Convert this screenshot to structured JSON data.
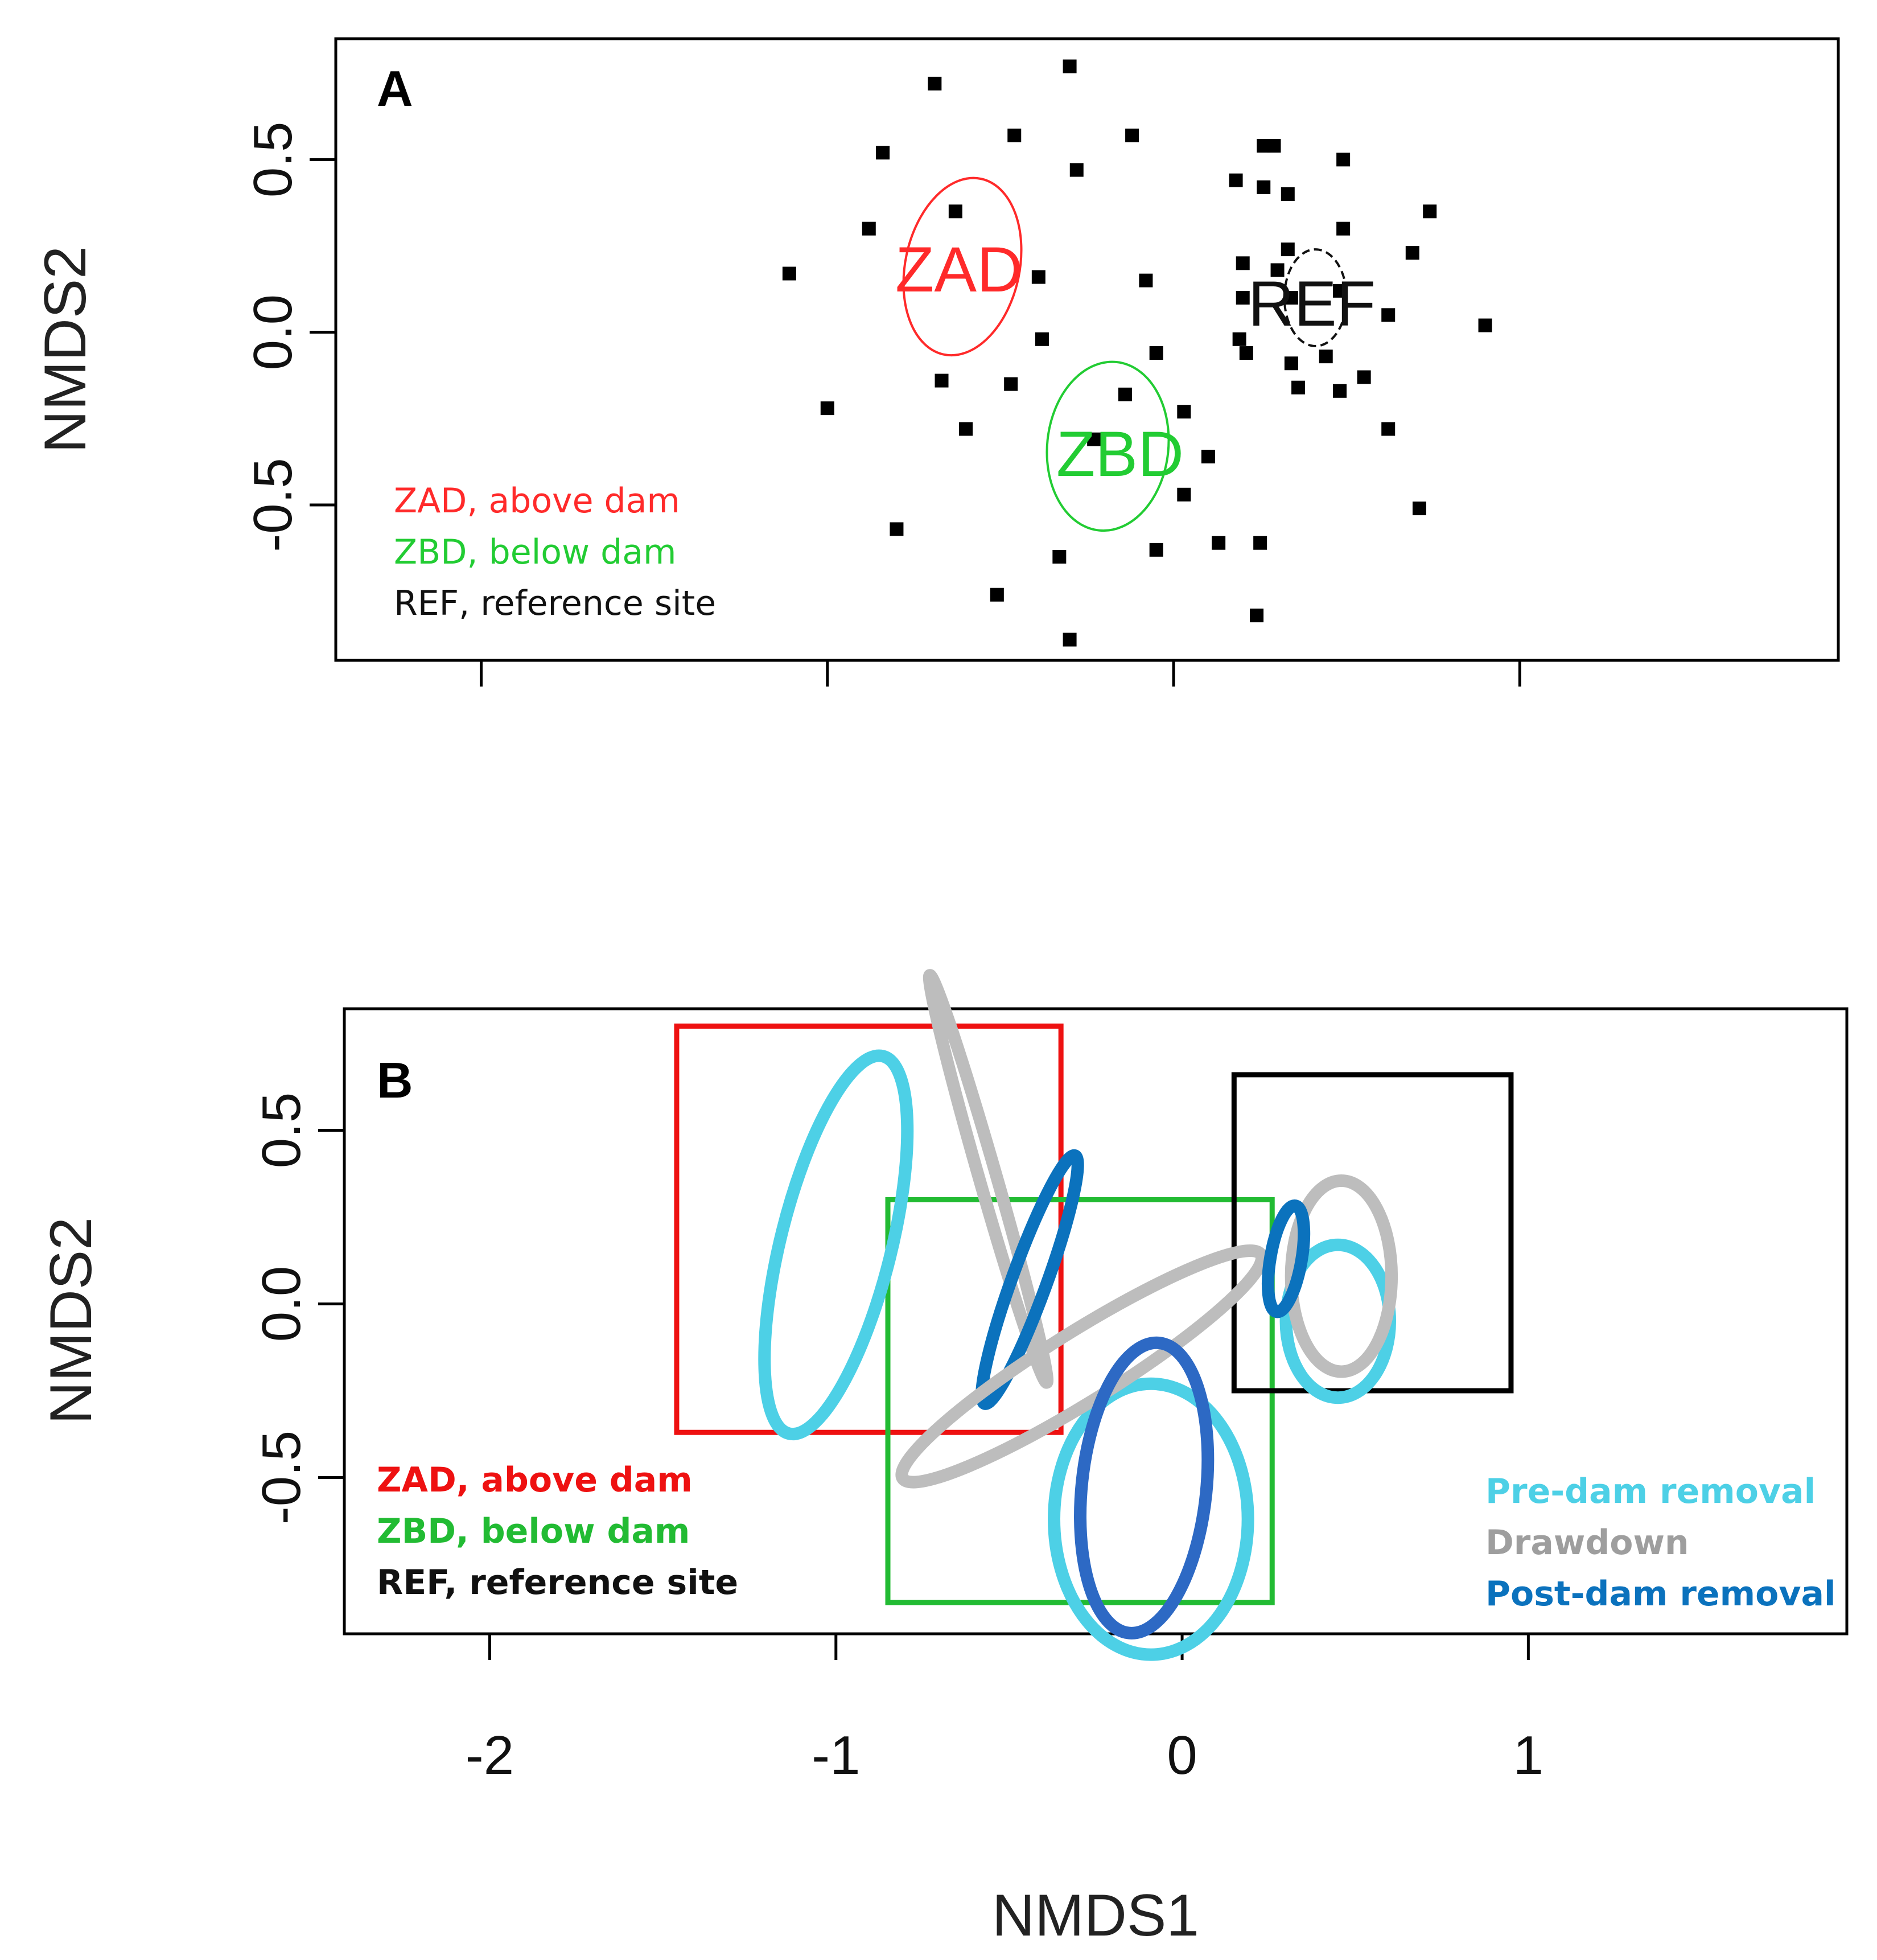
{
  "chart_data": [
    {
      "type": "scatter",
      "panel": "A",
      "xlabel": "NMDS1",
      "ylabel": "NMDS2",
      "xlim": [
        -2.42,
        1.92
      ],
      "ylim": [
        -0.95,
        0.85
      ],
      "xticks": [
        -2,
        -1,
        0,
        1
      ],
      "yticks": [
        -0.5,
        0.0,
        0.5
      ],
      "ytick_labels": [
        "-0.5",
        "0.0",
        "0.5"
      ],
      "points": [
        [
          -0.3,
          0.77
        ],
        [
          -0.69,
          0.72
        ],
        [
          -0.46,
          0.57
        ],
        [
          -0.12,
          0.57
        ],
        [
          -0.84,
          0.52
        ],
        [
          -0.28,
          0.47
        ],
        [
          -0.63,
          0.35
        ],
        [
          -0.88,
          0.3
        ],
        [
          -1.11,
          0.17
        ],
        [
          -0.39,
          0.16
        ],
        [
          -0.08,
          0.15
        ],
        [
          -0.38,
          -0.02
        ],
        [
          -1.0,
          -0.22
        ],
        [
          -0.67,
          -0.14
        ],
        [
          -0.47,
          -0.15
        ],
        [
          -0.6,
          -0.28
        ],
        [
          -0.8,
          -0.57
        ],
        [
          -0.05,
          -0.06
        ],
        [
          -0.14,
          -0.18
        ],
        [
          -0.23,
          -0.31
        ],
        [
          0.03,
          -0.23
        ],
        [
          0.1,
          -0.36
        ],
        [
          0.03,
          -0.47
        ],
        [
          -0.33,
          -0.65
        ],
        [
          -0.51,
          -0.76
        ],
        [
          -0.3,
          -0.89
        ],
        [
          -0.05,
          -0.63
        ],
        [
          0.13,
          -0.61
        ],
        [
          0.25,
          -0.61
        ],
        [
          0.24,
          -0.82
        ],
        [
          0.18,
          0.44
        ],
        [
          0.26,
          0.54
        ],
        [
          0.29,
          0.54
        ],
        [
          0.26,
          0.42
        ],
        [
          0.33,
          0.4
        ],
        [
          0.49,
          0.5
        ],
        [
          0.74,
          0.35
        ],
        [
          0.49,
          0.3
        ],
        [
          0.33,
          0.24
        ],
        [
          0.2,
          0.2
        ],
        [
          0.3,
          0.18
        ],
        [
          0.69,
          0.23
        ],
        [
          0.2,
          0.1
        ],
        [
          0.34,
          0.1
        ],
        [
          0.48,
          0.12
        ],
        [
          0.62,
          0.05
        ],
        [
          0.9,
          0.02
        ],
        [
          0.19,
          -0.02
        ],
        [
          0.21,
          -0.06
        ],
        [
          0.34,
          -0.09
        ],
        [
          0.44,
          -0.07
        ],
        [
          0.55,
          -0.13
        ],
        [
          0.36,
          -0.16
        ],
        [
          0.48,
          -0.17
        ],
        [
          0.62,
          -0.28
        ],
        [
          0.71,
          -0.51
        ]
      ],
      "groups": [
        {
          "label": "ZAD",
          "color": "#ff2a2a",
          "center": [
            -0.61,
            0.19
          ],
          "width": 0.33,
          "height": 0.52,
          "angle_deg": 12
        },
        {
          "label": "ZBD",
          "color": "#22cc33",
          "center": [
            -0.19,
            -0.33
          ],
          "width": 0.35,
          "height": 0.49,
          "angle_deg": 6
        },
        {
          "label": "REF",
          "color": "#111111",
          "center": [
            0.41,
            0.1
          ],
          "width": 0.18,
          "height": 0.28,
          "angle_deg": 0
        }
      ],
      "legend": [
        {
          "text": "ZAD, above dam",
          "color": "#ff2a2a"
        },
        {
          "text": "ZBD, below dam",
          "color": "#22cc33"
        },
        {
          "text": "REF, reference site",
          "color": "#111111"
        }
      ],
      "legend_position": "bottom-left"
    },
    {
      "type": "scatter",
      "panel": "B",
      "xlabel": "NMDS1",
      "ylabel": "NMDS2",
      "xlim": [
        -2.42,
        1.92
      ],
      "ylim": [
        -0.95,
        0.85
      ],
      "xticks": [
        -2,
        -1,
        0,
        1
      ],
      "xtick_labels": [
        "-2",
        "-1",
        "0",
        "1"
      ],
      "yticks": [
        -0.5,
        0.0,
        0.5
      ],
      "ytick_labels": [
        "-0.5",
        "0.0",
        "0.5"
      ],
      "group_boxes": [
        {
          "group": "ZAD",
          "color": "#ee1111",
          "x": [
            -1.46,
            -0.35
          ],
          "y": [
            -0.37,
            0.8
          ]
        },
        {
          "group": "ZBD",
          "color": "#22bb33",
          "x": [
            -0.85,
            0.26
          ],
          "y": [
            -0.86,
            0.3
          ]
        },
        {
          "group": "REF",
          "color": "#000000",
          "x": [
            0.15,
            0.95
          ],
          "y": [
            -0.25,
            0.66
          ]
        }
      ],
      "ellipses": [
        {
          "period": "Pre-dam removal",
          "site": "ZAD",
          "color": "#4dd0e6",
          "center": [
            -1.0,
            0.17
          ],
          "width": 0.32,
          "height": 1.12,
          "angle_deg": 14
        },
        {
          "period": "Drawdown",
          "site": "ZAD",
          "color": "#bdbdbd",
          "center": [
            -0.56,
            0.36
          ],
          "width": 0.05,
          "height": 1.22,
          "angle_deg": -16
        },
        {
          "period": "Post-dam removal",
          "site": "ZAD",
          "color": "#0b72bd",
          "center": [
            -0.44,
            0.07
          ],
          "width": 0.1,
          "height": 0.76,
          "angle_deg": 20
        },
        {
          "period": "Pre-dam removal",
          "site": "ZBD",
          "color": "#4dd0e6",
          "center": [
            -0.09,
            -0.62
          ],
          "width": 0.56,
          "height": 0.78,
          "angle_deg": 0
        },
        {
          "period": "Drawdown",
          "site": "ZBD",
          "color": "#bdbdbd",
          "center": [
            -0.29,
            -0.18
          ],
          "width": 1.22,
          "height": 0.2,
          "angle_deg": -32
        },
        {
          "period": "Post-dam removal",
          "site": "ZBD",
          "color": "#2d69c4",
          "center": [
            -0.11,
            -0.53
          ],
          "width": 0.36,
          "height": 0.84,
          "angle_deg": 6
        },
        {
          "period": "Pre-dam removal",
          "site": "REF",
          "color": "#4dd0e6",
          "center": [
            0.45,
            -0.05
          ],
          "width": 0.3,
          "height": 0.44,
          "angle_deg": 0
        },
        {
          "period": "Drawdown",
          "site": "REF",
          "color": "#bdbdbd",
          "center": [
            0.46,
            0.08
          ],
          "width": 0.29,
          "height": 0.55,
          "angle_deg": 0
        },
        {
          "period": "Post-dam removal",
          "site": "REF",
          "color": "#0b72bd",
          "center": [
            0.3,
            0.13
          ],
          "width": 0.09,
          "height": 0.31,
          "angle_deg": 10
        }
      ],
      "legend_sites": [
        {
          "text": "ZAD, above dam",
          "color": "#ee1111"
        },
        {
          "text": "ZBD, below dam",
          "color": "#22bb33"
        },
        {
          "text": "REF, reference site",
          "color": "#111111"
        }
      ],
      "legend_periods": [
        {
          "text": "Pre-dam removal",
          "color": "#4dd0e6"
        },
        {
          "text": "Drawdown",
          "color": "#9e9e9e"
        },
        {
          "text": "Post-dam removal",
          "color": "#0b72bd"
        }
      ],
      "legend_sites_position": "bottom-left",
      "legend_periods_position": "bottom-right"
    }
  ],
  "panel_a_letter": "A",
  "panel_b_letter": "B",
  "ytitle": "NMDS2",
  "xtitle": "NMDS1",
  "centroid_labels": {
    "zad": "ZAD",
    "zbd": "ZBD",
    "ref": "REF"
  }
}
